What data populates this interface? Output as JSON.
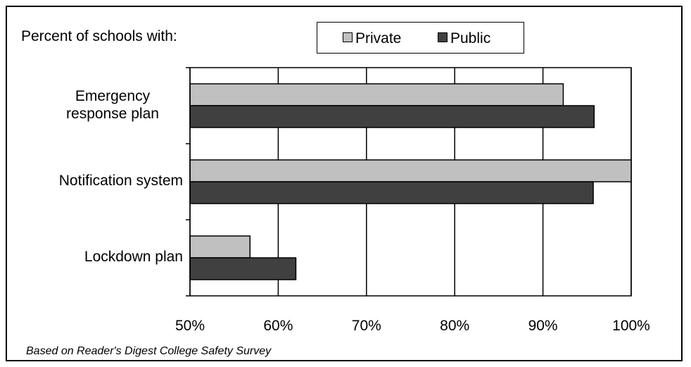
{
  "chart_data": {
    "type": "bar",
    "orientation": "horizontal",
    "title": "Percent of schools with:",
    "categories": [
      "Emergency response plan",
      "Notification system",
      "Lockdown plan"
    ],
    "category_display": [
      [
        "Emergency",
        "response plan"
      ],
      [
        "Notification system"
      ],
      [
        "Lockdown plan"
      ]
    ],
    "series": [
      {
        "name": "Private",
        "values": [
          92.3,
          100,
          56.8
        ],
        "color": "#c0c0c0"
      },
      {
        "name": "Public",
        "values": [
          95.8,
          95.7,
          62.0
        ],
        "color": "#404040"
      }
    ],
    "xlim": [
      50,
      100
    ],
    "xticks": [
      50,
      60,
      70,
      80,
      90,
      100
    ],
    "xtick_labels": [
      "50%",
      "60%",
      "70%",
      "80%",
      "90%",
      "100%"
    ],
    "xlabel": "",
    "ylabel": "",
    "grid": "vertical",
    "legend": "top"
  },
  "footnote": "Based on Reader's Digest College Safety Survey"
}
